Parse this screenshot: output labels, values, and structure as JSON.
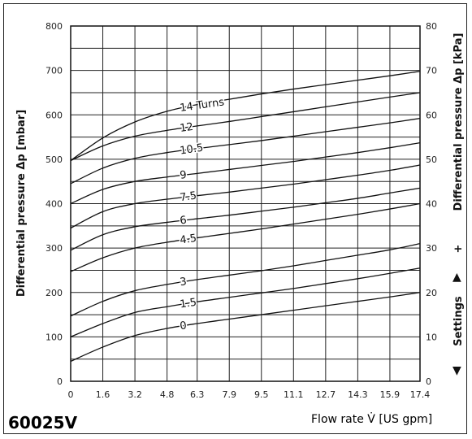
{
  "model_label": "60025V",
  "chart_data": {
    "type": "line",
    "xlabel": "Flow rate V̇ [US gpm]",
    "ylabel_left": "Differential pressure Δp [mbar]",
    "ylabel_right": "Differential pressure Δp [kPa]",
    "settings_label": "Settings",
    "settings_plus": "+",
    "arrow_up": "▲",
    "arrow_down": "▼",
    "xlim": [
      0,
      17.4
    ],
    "ylim": [
      0,
      800
    ],
    "x_ticks": [
      "1.6",
      "3.2",
      "4.8",
      "6.3",
      "7.9",
      "9.5",
      "11.1",
      "12.7",
      "14.3",
      "15.9",
      "17.4"
    ],
    "x_ticks_origin": "0",
    "y_ticks_left": [
      "0",
      "100",
      "200",
      "300",
      "400",
      "500",
      "600",
      "700",
      "800"
    ],
    "y_ticks_right": [
      "0",
      "10",
      "20",
      "30",
      "40",
      "50",
      "60",
      "70",
      "80"
    ],
    "grid": true,
    "series": [
      {
        "name": "0",
        "x": [
          0,
          1.6,
          3.2,
          4.8,
          6.3,
          7.9,
          9.5,
          11.1,
          12.7,
          14.3,
          15.9,
          17.4
        ],
        "y": [
          45,
          77,
          103,
          119,
          130,
          140,
          150,
          160,
          170,
          180,
          190,
          200
        ]
      },
      {
        "name": "1.5",
        "x": [
          0,
          1.6,
          3.2,
          4.8,
          6.3,
          7.9,
          9.5,
          11.1,
          12.7,
          14.3,
          15.9,
          17.4
        ],
        "y": [
          100,
          130,
          155,
          168,
          179,
          189,
          199,
          209,
          220,
          231,
          243,
          255
        ]
      },
      {
        "name": "3",
        "x": [
          0,
          1.6,
          3.2,
          4.8,
          6.3,
          7.9,
          9.5,
          11.1,
          12.7,
          14.3,
          15.9,
          17.4
        ],
        "y": [
          147,
          180,
          204,
          218,
          229,
          239,
          249,
          260,
          272,
          284,
          296,
          310
        ]
      },
      {
        "name": "4.5",
        "x": [
          0,
          1.6,
          3.2,
          4.8,
          6.3,
          7.9,
          9.5,
          11.1,
          12.7,
          14.3,
          15.9,
          17.4
        ],
        "y": [
          247,
          278,
          300,
          313,
          323,
          333,
          343,
          354,
          365,
          376,
          388,
          400
        ]
      },
      {
        "name": "6",
        "x": [
          0,
          1.6,
          3.2,
          4.8,
          6.3,
          7.9,
          9.5,
          11.1,
          12.7,
          14.3,
          15.9,
          17.4
        ],
        "y": [
          295,
          330,
          348,
          358,
          366,
          374,
          383,
          392,
          402,
          412,
          424,
          435
        ]
      },
      {
        "name": "7.5",
        "x": [
          0,
          1.6,
          3.2,
          4.8,
          6.3,
          7.9,
          9.5,
          11.1,
          12.7,
          14.3,
          15.9,
          17.4
        ],
        "y": [
          345,
          382,
          400,
          410,
          418,
          426,
          435,
          444,
          454,
          464,
          475,
          487
        ]
      },
      {
        "name": "9",
        "x": [
          0,
          1.6,
          3.2,
          4.8,
          6.3,
          7.9,
          9.5,
          11.1,
          12.7,
          14.3,
          15.9,
          17.4
        ],
        "y": [
          400,
          432,
          450,
          460,
          468,
          477,
          486,
          495,
          505,
          515,
          526,
          537
        ]
      },
      {
        "name": "10.5",
        "x": [
          0,
          1.6,
          3.2,
          4.8,
          6.3,
          7.9,
          9.5,
          11.1,
          12.7,
          14.3,
          15.9,
          17.4
        ],
        "y": [
          445,
          480,
          502,
          515,
          524,
          533,
          542,
          552,
          562,
          572,
          582,
          592
        ]
      },
      {
        "name": "12",
        "x": [
          0,
          1.6,
          3.2,
          4.8,
          6.3,
          7.9,
          9.5,
          11.1,
          12.7,
          14.3,
          15.9,
          17.4
        ],
        "y": [
          497,
          530,
          552,
          565,
          575,
          585,
          596,
          607,
          618,
          629,
          640,
          650
        ]
      },
      {
        "name": "14 Turns",
        "x": [
          0,
          1.6,
          3.2,
          4.8,
          6.3,
          7.9,
          9.5,
          11.1,
          12.7,
          14.3,
          15.9,
          17.4
        ],
        "y": [
          497,
          548,
          584,
          608,
          623,
          635,
          647,
          658,
          668,
          678,
          688,
          698
        ]
      }
    ],
    "curve_labels": [
      {
        "text": "0",
        "series": "0",
        "x": 5.6
      },
      {
        "text": "1.5",
        "series": "1.5",
        "x": 5.6
      },
      {
        "text": "3",
        "series": "3",
        "x": 5.6
      },
      {
        "text": "4.5",
        "series": "4.5",
        "x": 5.6
      },
      {
        "text": "6",
        "series": "6",
        "x": 5.6
      },
      {
        "text": "7.5",
        "series": "7.5",
        "x": 5.6
      },
      {
        "text": "9",
        "series": "9",
        "x": 5.6
      },
      {
        "text": "10.5",
        "series": "10.5",
        "x": 5.6
      },
      {
        "text": "12",
        "series": "12",
        "x": 5.6
      },
      {
        "text": "14 Turns",
        "series": "14 Turns",
        "x": 5.6
      }
    ]
  }
}
